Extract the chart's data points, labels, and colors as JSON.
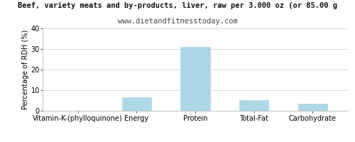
{
  "title_line1": "Beef, variety meats and by-products, liver, raw per 3.000 oz (or 85.00 g",
  "title_line2": "www.dietandfitnesstoday.com",
  "categories": [
    "Vitamin-K-(phylloquinone)",
    "Energy",
    "Protein",
    "Total-Fat",
    "Carbohydrate"
  ],
  "values": [
    0.0,
    6.5,
    31.0,
    5.2,
    3.4
  ],
  "bar_color": "#add8e6",
  "ylabel": "Percentage of RDH (%)",
  "ylim": [
    0,
    40
  ],
  "yticks": [
    0,
    10,
    20,
    30,
    40
  ],
  "background_color": "#ffffff",
  "grid_color": "#cccccc",
  "title_fontsize": 7.5,
  "subtitle_fontsize": 7.5,
  "ylabel_fontsize": 7,
  "tick_fontsize": 7,
  "xtick_fontsize": 7
}
